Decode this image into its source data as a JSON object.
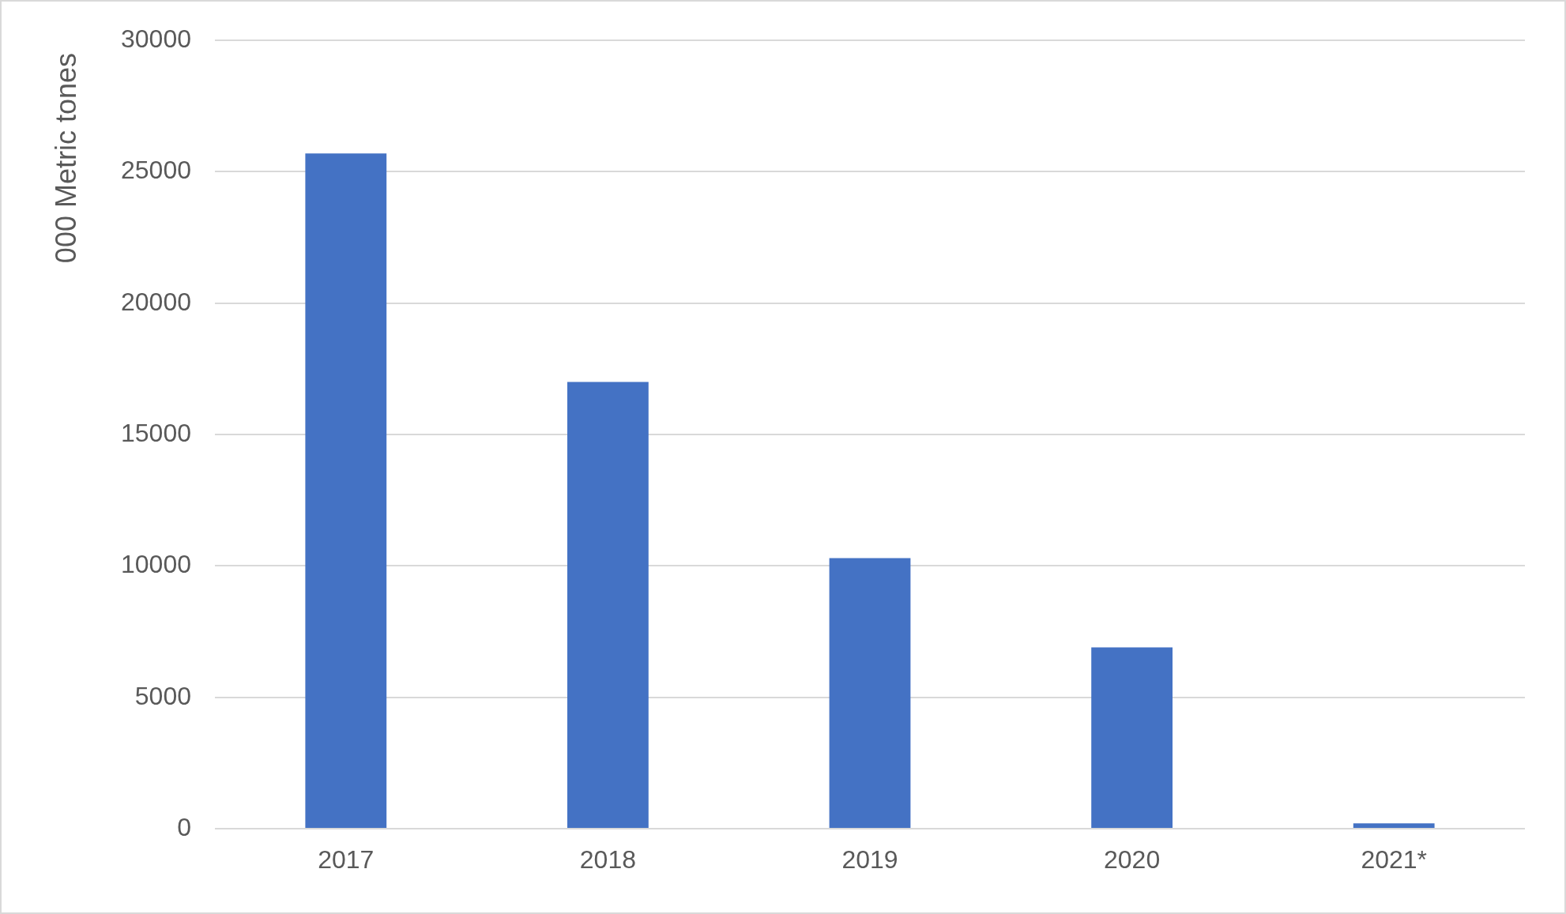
{
  "chart_data": {
    "type": "bar",
    "ylabel": "000 Metric tones",
    "categories": [
      "2017",
      "2018",
      "2019",
      "2020",
      "2021*"
    ],
    "values": [
      25700,
      17000,
      10300,
      6900,
      200
    ],
    "color": "#4472c4",
    "ylim": [
      0,
      30000
    ],
    "yticks": [
      0,
      5000,
      10000,
      15000,
      20000,
      25000,
      30000
    ],
    "grid": "y"
  }
}
